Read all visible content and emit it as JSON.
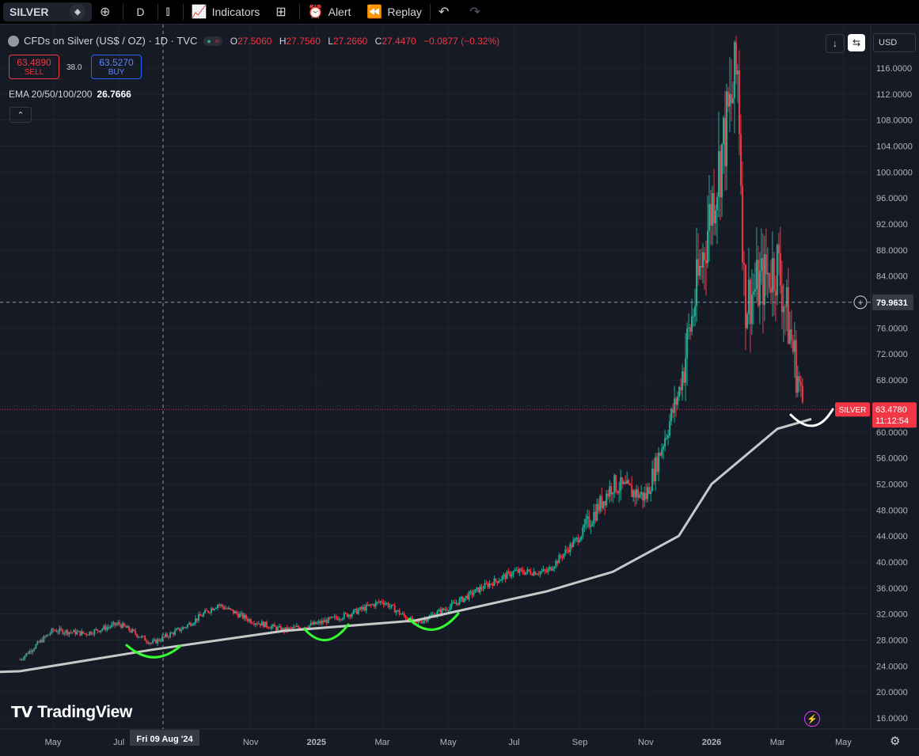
{
  "toolbar": {
    "symbol": "SILVER",
    "interval": "D",
    "indicators_label": "Indicators",
    "alert_label": "Alert",
    "replay_label": "Replay"
  },
  "legend": {
    "title": "CFDs on Silver (US$ / OZ) · 1D · TVC",
    "open_label": "O",
    "open": "27.5060",
    "high_label": "H",
    "high": "27.7560",
    "low_label": "L",
    "low": "27.2660",
    "close_label": "C",
    "close": "27.4470",
    "change": "−0.0877 (−0.32%)"
  },
  "trade": {
    "sell_price": "63.4890",
    "sell_label": "SELL",
    "spread": "38.0",
    "buy_price": "63.5270",
    "buy_label": "BUY"
  },
  "ema": {
    "label": "EMA 20/50/100/200",
    "value": "26.7666"
  },
  "currency": "USD",
  "crosshair": {
    "price_label": "79.9631",
    "date_label": "Fri 09 Aug '24"
  },
  "last_price": {
    "symbol_tag": "SILVER",
    "price": "63.4780",
    "countdown": "11:12:54"
  },
  "brand": "TradingView",
  "colors": {
    "up": "#22ab94",
    "down": "#f23645",
    "ema": "#c8c8c8",
    "annot_green": "#33ff33",
    "annot_white": "#ffffff",
    "bg": "#161a25"
  },
  "chart_data": {
    "type": "candlestick",
    "symbol": "SILVER",
    "x_axis_ticks": [
      "May",
      "Jul",
      "Nov",
      "2025",
      "Mar",
      "May",
      "Jul",
      "Sep",
      "Nov",
      "2026",
      "Mar",
      "May"
    ],
    "y_axis_ticks": [
      "116.0000",
      "112.0000",
      "108.0000",
      "104.0000",
      "100.0000",
      "96.0000",
      "92.0000",
      "88.0000",
      "84.0000",
      "80.0000",
      "76.0000",
      "72.0000",
      "68.0000",
      "64.0000",
      "60.0000",
      "56.0000",
      "52.0000",
      "48.0000",
      "44.0000",
      "40.0000",
      "36.0000",
      "32.0000",
      "28.0000",
      "24.0000",
      "20.0000",
      "16.0000"
    ],
    "ylim": [
      14.5,
      120
    ],
    "price_path": [
      {
        "x": "2024-04",
        "y": 25.0
      },
      {
        "x": "2024-05",
        "y": 29.5
      },
      {
        "x": "2024-06",
        "y": 29.0
      },
      {
        "x": "2024-07",
        "y": 30.5
      },
      {
        "x": "2024-08",
        "y": 27.5
      },
      {
        "x": "2024-09",
        "y": 30.0
      },
      {
        "x": "2024-10",
        "y": 33.5
      },
      {
        "x": "2024-11",
        "y": 31.0
      },
      {
        "x": "2024-12",
        "y": 29.5
      },
      {
        "x": "2025-01",
        "y": 30.5
      },
      {
        "x": "2025-02",
        "y": 32.0
      },
      {
        "x": "2025-03",
        "y": 34.0
      },
      {
        "x": "2025-04",
        "y": 30.5
      },
      {
        "x": "2025-05",
        "y": 33.0
      },
      {
        "x": "2025-06",
        "y": 36.0
      },
      {
        "x": "2025-07",
        "y": 38.5
      },
      {
        "x": "2025-08",
        "y": 38.5
      },
      {
        "x": "2025-09",
        "y": 44.0
      },
      {
        "x": "2025-10",
        "y": 52.0
      },
      {
        "x": "2025-11",
        "y": 50.0
      },
      {
        "x": "2025-12",
        "y": 66.0
      },
      {
        "x": "2026-01",
        "y": 95.0
      },
      {
        "x": "2026-01-end",
        "y": 116.0
      },
      {
        "x": "2026-02",
        "y": 80.0
      },
      {
        "x": "2026-03",
        "y": 86.0
      },
      {
        "x": "2026-03-end",
        "y": 63.5
      }
    ],
    "ema_line": [
      {
        "x": "2024-04",
        "y": 23.2
      },
      {
        "x": "2024-08",
        "y": 26.5
      },
      {
        "x": "2024-12",
        "y": 29.4
      },
      {
        "x": "2025-04",
        "y": 31.0
      },
      {
        "x": "2025-08",
        "y": 35.5
      },
      {
        "x": "2025-10",
        "y": 38.5
      },
      {
        "x": "2025-12",
        "y": 44.0
      },
      {
        "x": "2026-01",
        "y": 52.0
      },
      {
        "x": "2026-03",
        "y": 60.5
      }
    ],
    "grid": true
  }
}
